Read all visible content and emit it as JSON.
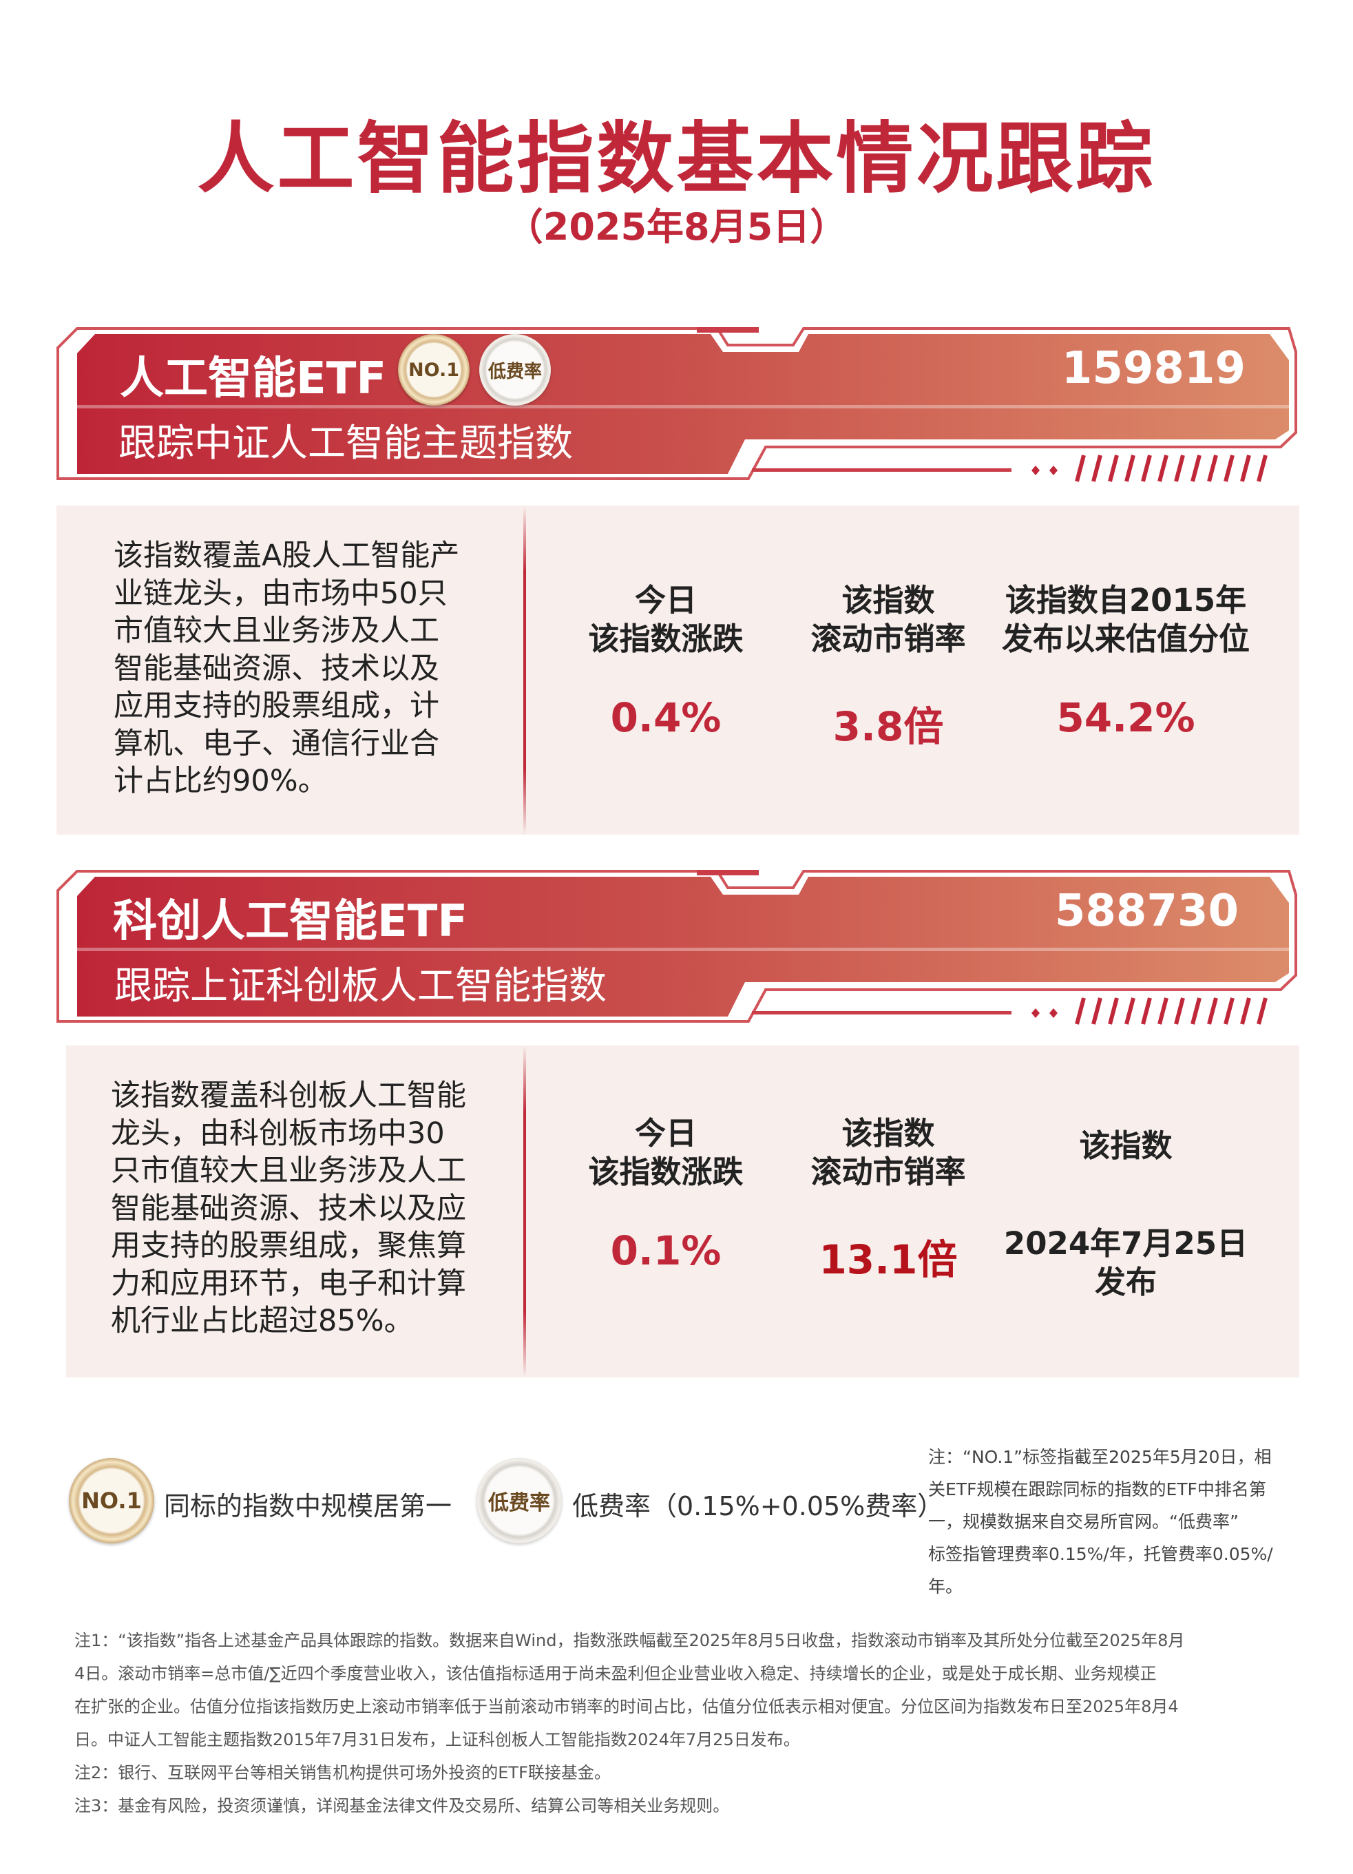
{
  "header": {
    "title": "人工智能指数基本情况跟踪",
    "date": "（2025年8月5日）"
  },
  "colors": {
    "accent": "#c0283a",
    "banner_gradient_end": "#dc8c6a",
    "panel_bg": "#f8efec",
    "highlight_value": "#b5121b"
  },
  "funds": [
    {
      "name": "人工智能ETF",
      "code": "159819",
      "tracking": "跟踪中证人工智能主题指数",
      "badges": [
        {
          "label": "NO.1",
          "icon": "no1-medal-icon"
        },
        {
          "label": "低费率",
          "icon": "low-fee-seal-icon"
        }
      ],
      "description": [
        "该指数覆盖A股人工智能产",
        "业链龙头，由市场中50只",
        "市值较大且业务涉及人工",
        "智能基础资源、技术以及",
        "应用支持的股票组成，计",
        "算机、电子、通信行业合",
        "计占比约90%。"
      ],
      "metrics": [
        {
          "label1": "今日",
          "label2": "该指数涨跌",
          "value": "0.4%"
        },
        {
          "label1": "该指数",
          "label2": "滚动市销率",
          "value": "3.8倍"
        },
        {
          "label1": "该指数自2015年",
          "label2": "发布以来估值分位",
          "value": "54.2%"
        }
      ]
    },
    {
      "name": "科创人工智能ETF",
      "code": "588730",
      "tracking": "跟踪上证科创板人工智能指数",
      "description": [
        "该指数覆盖科创板人工智能",
        "龙头，由科创板市场中30",
        "只市值较大且业务涉及人工",
        "智能基础资源、技术以及应",
        "用支持的股票组成，聚焦算",
        "力和应用环节，电子和计算",
        "机行业占比超过85%。"
      ],
      "metrics": [
        {
          "label1": "今日",
          "label2": "该指数涨跌",
          "value": "0.1%"
        },
        {
          "label1": "该指数",
          "label2": "滚动市销率",
          "value": "13.1倍"
        },
        {
          "label1": "该指数",
          "value1": "2024年7月25日",
          "value2": "发布"
        }
      ]
    }
  ],
  "legend": [
    {
      "badge": "NO.1",
      "text": "同标的指数中规模居第一"
    },
    {
      "badge": "低费率",
      "text": "低费率（0.15%+0.05%费率）"
    }
  ],
  "side_note": [
    "注：“NO.1”标签指截至2025年5月20日，相",
    "关ETF规模在跟踪同标的指数的ETF中排名第",
    "一，规模数据来自交易所官网。“低费率”",
    "标签指管理费率0.15%/年，托管费率0.05%/",
    "年。"
  ],
  "footnotes": [
    "注1：“该指数”指各上述基金产品具体跟踪的指数。数据来自Wind，指数涨跌幅截至2025年8月5日收盘，指数滚动市销率及其所处分位截至2025年8月",
    "4日。滚动市销率=总市值/∑近四个季度营业收入，该估值指标适用于尚未盈利但企业营业收入稳定、持续增长的企业，或是处于成长期、业务规模正",
    "在扩张的企业。估值分位指该指数历史上滚动市销率低于当前滚动市销率的时间占比，估值分位低表示相对便宜。分位区间为指数发布日至2025年8月4",
    "日。中证人工智能主题指数2015年7月31日发布，上证科创板人工智能指数2024年7月25日发布。",
    "注2：银行、互联网平台等相关销售机构提供可场外投资的ETF联接基金。",
    "注3：基金有风险，投资须谨慎，详阅基金法律文件及交易所、结算公司等相关业务规则。"
  ]
}
